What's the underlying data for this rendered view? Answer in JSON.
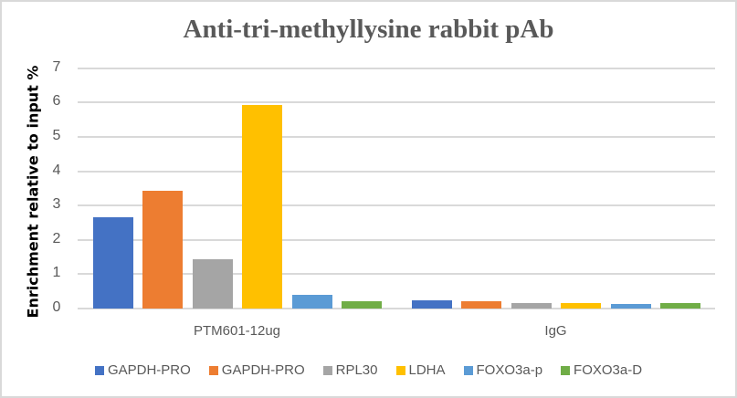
{
  "chart_data": {
    "type": "bar",
    "title": "Anti-tri-methyllysine rabbit pAb",
    "xlabel": "",
    "ylabel": "Enrichment relative to input  %",
    "ylim": [
      0,
      7
    ],
    "yticks": [
      "0",
      "1",
      "2",
      "3",
      "4",
      "5",
      "6",
      "7"
    ],
    "grid": true,
    "legend_position": "bottom",
    "categories": [
      "PTM601-12ug",
      "IgG"
    ],
    "series": [
      {
        "name": "GAPDH-PRO",
        "color": "#4472c4",
        "values": [
          2.65,
          0.25
        ]
      },
      {
        "name": "GAPDH-PRO",
        "color": "#ed7d31",
        "values": [
          3.43,
          0.2
        ]
      },
      {
        "name": "RPL30",
        "color": "#a5a5a5",
        "values": [
          1.43,
          0.17
        ]
      },
      {
        "name": "LDHA",
        "color": "#ffc000",
        "values": [
          5.93,
          0.17
        ]
      },
      {
        "name": "FOXO3a-p",
        "color": "#5b9bd5",
        "values": [
          0.41,
          0.14
        ]
      },
      {
        "name": "FOXO3a-D",
        "color": "#70ad47",
        "values": [
          0.2,
          0.17
        ]
      }
    ]
  }
}
